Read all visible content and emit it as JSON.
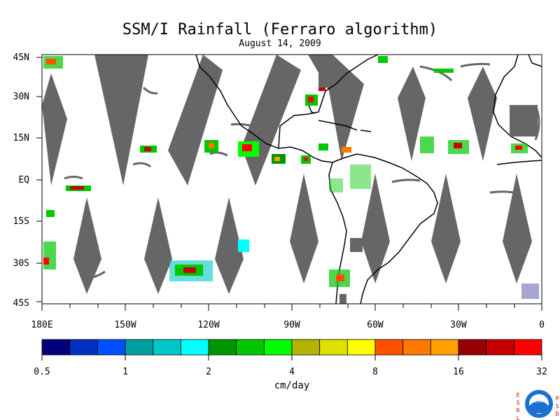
{
  "title": "SSM/I Rainfall (Ferraro algorithm)",
  "subtitle": "August 14, 2009",
  "map": {
    "lat_labels": [
      "45N",
      "30N",
      "15N",
      "EQ",
      "15S",
      "30S",
      "45S"
    ],
    "lon_labels": [
      "180E",
      "150W",
      "120W",
      "90W",
      "60W",
      "30W",
      "0"
    ],
    "land_color": "#666666",
    "swath_gap_color": "#666666"
  },
  "colorbar": {
    "colors": [
      "#00007f",
      "#0030c0",
      "#0050ff",
      "#00a0a0",
      "#00c8c8",
      "#00ffff",
      "#009600",
      "#00c800",
      "#00ff00",
      "#b4b400",
      "#e0e000",
      "#ffff00",
      "#ff5000",
      "#ff7800",
      "#ffa000",
      "#960000",
      "#c80000",
      "#ff0000"
    ],
    "tick_labels": [
      "0.5",
      "1",
      "2",
      "4",
      "8",
      "16",
      "32"
    ],
    "unit": "cm/day"
  },
  "logo": {
    "left_letters": [
      "E",
      "S",
      "R",
      "L"
    ],
    "right_letters": [
      "P",
      "S",
      "D"
    ],
    "center_text": "NOAA"
  }
}
